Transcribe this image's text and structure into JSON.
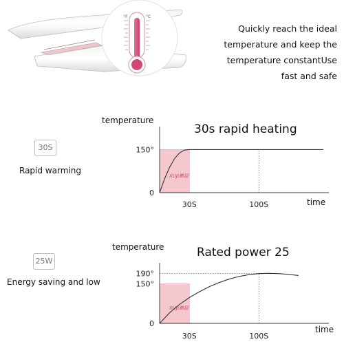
{
  "header": {
    "lines": [
      "Quickly reach the ideal",
      "temperature and keep the",
      "temperature constantUse",
      "fast and safe"
    ],
    "thermometer": {
      "unit_f": "°F",
      "unit_c": "°C"
    }
  },
  "feature_rows": [
    {
      "badge": "30S",
      "label": "Rapid warming"
    },
    {
      "badge": "25W",
      "label": "Energy saving and low"
    }
  ],
  "charts": [
    {
      "title": "30s rapid heating",
      "ylabel": "temperature",
      "xlabel": "time",
      "logo": "XUJI高巨"
    },
    {
      "title": "Rated power 25",
      "ylabel": "temperature",
      "xlabel": "time",
      "logo": "XUJI高巨"
    }
  ],
  "chart_data": [
    {
      "type": "line",
      "title": "30s rapid heating",
      "ylabel": "temperature",
      "xlabel": "time",
      "y_ticks": [
        {
          "value": 0,
          "label": "0"
        },
        {
          "value": 150,
          "label": "150°"
        }
      ],
      "x_ticks": [
        {
          "value": 30,
          "label": "30S"
        },
        {
          "value": 100,
          "label": "100S"
        }
      ],
      "xlim": [
        0,
        165
      ],
      "ylim": [
        0,
        230
      ],
      "series": [
        {
          "x": [
            0,
            5,
            10,
            15,
            20,
            25,
            30,
            50,
            70,
            100,
            130,
            165
          ],
          "y": [
            0,
            48,
            88,
            118,
            138,
            148,
            150,
            150,
            150,
            150,
            150,
            150
          ]
        }
      ],
      "shaded_region": {
        "x": [
          0,
          30
        ],
        "y": [
          0,
          150
        ],
        "color": "#f5c8d0"
      },
      "reference_lines": {
        "vertical": [
          100
        ]
      }
    },
    {
      "type": "line",
      "title": "Rated power 25",
      "ylabel": "temperature",
      "xlabel": "time",
      "y_ticks": [
        {
          "value": 0,
          "label": "0"
        },
        {
          "value": 150,
          "label": "150°"
        },
        {
          "value": 190,
          "label": "190°"
        }
      ],
      "x_ticks": [
        {
          "value": 30,
          "label": "30S"
        },
        {
          "value": 100,
          "label": "100S"
        }
      ],
      "xlim": [
        0,
        165
      ],
      "ylim": [
        0,
        230
      ],
      "series": [
        {
          "x": [
            0,
            10,
            20,
            30,
            40,
            50,
            60,
            70,
            80,
            90,
            100,
            110,
            120,
            130,
            140
          ],
          "y": [
            0,
            40,
            72,
            98,
            120,
            139,
            155,
            168,
            178,
            185,
            189,
            190,
            189,
            186,
            182
          ]
        }
      ],
      "shaded_region": {
        "x": [
          0,
          30
        ],
        "y": [
          0,
          150
        ],
        "color": "#f5c8d0"
      },
      "reference_lines": {
        "vertical": [
          100
        ],
        "horizontal": [
          190
        ]
      }
    }
  ]
}
